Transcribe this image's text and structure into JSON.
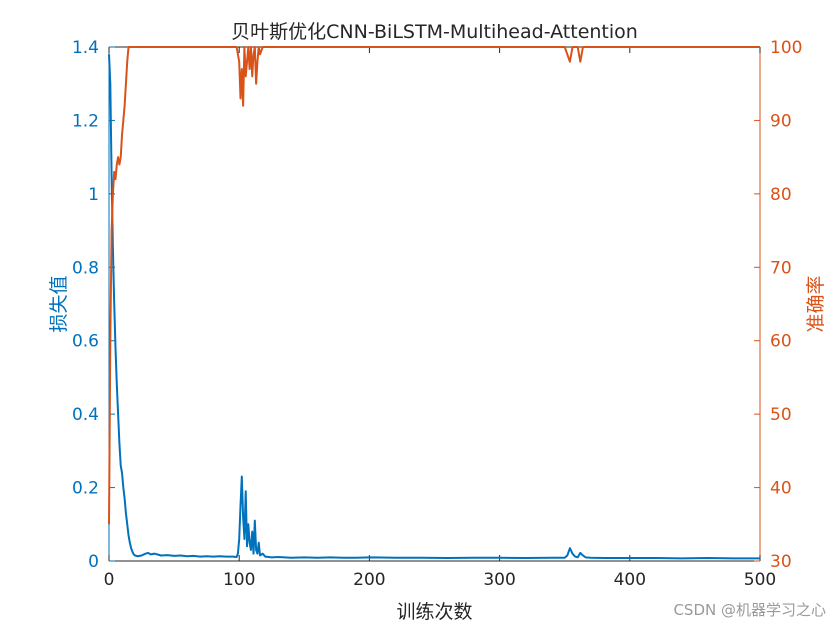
{
  "chart_data": {
    "type": "line",
    "title": "贝叶斯优化CNN-BiLSTM-Multihead-Attention",
    "xlabel": "训练次数",
    "ylabel_left": "损失值",
    "ylabel_right": "准确率",
    "xlim": [
      0,
      500
    ],
    "ylim_left": [
      0,
      1.4
    ],
    "ylim_right": [
      30,
      100
    ],
    "x_ticks": [
      "0",
      "100",
      "200",
      "300",
      "400",
      "500"
    ],
    "y_ticks_left": [
      "0",
      "0.2",
      "0.4",
      "0.6",
      "0.8",
      "1",
      "1.2",
      "1.4"
    ],
    "y_ticks_right": [
      "30",
      "40",
      "50",
      "60",
      "70",
      "80",
      "90",
      "100"
    ],
    "colors": {
      "loss": "#0072BD",
      "accuracy": "#D95319"
    },
    "grid": false,
    "series": [
      {
        "axis": "left",
        "points": [
          [
            0,
            1.38
          ],
          [
            1,
            1.3
          ],
          [
            2,
            1.05
          ],
          [
            3,
            0.85
          ],
          [
            4,
            0.7
          ],
          [
            5,
            0.58
          ],
          [
            6,
            0.48
          ],
          [
            7,
            0.4
          ],
          [
            8,
            0.32
          ],
          [
            9,
            0.26
          ],
          [
            10,
            0.24
          ],
          [
            11,
            0.2
          ],
          [
            12,
            0.17
          ],
          [
            13,
            0.13
          ],
          [
            14,
            0.1
          ],
          [
            15,
            0.07
          ],
          [
            16,
            0.05
          ],
          [
            17,
            0.035
          ],
          [
            18,
            0.025
          ],
          [
            19,
            0.018
          ],
          [
            20,
            0.015
          ],
          [
            22,
            0.013
          ],
          [
            25,
            0.015
          ],
          [
            28,
            0.02
          ],
          [
            30,
            0.022
          ],
          [
            32,
            0.018
          ],
          [
            35,
            0.02
          ],
          [
            38,
            0.017
          ],
          [
            40,
            0.015
          ],
          [
            45,
            0.016
          ],
          [
            50,
            0.014
          ],
          [
            55,
            0.015
          ],
          [
            60,
            0.013
          ],
          [
            65,
            0.014
          ],
          [
            70,
            0.012
          ],
          [
            75,
            0.013
          ],
          [
            80,
            0.012
          ],
          [
            85,
            0.013
          ],
          [
            90,
            0.012
          ],
          [
            95,
            0.012
          ],
          [
            98,
            0.011
          ],
          [
            99,
            0.02
          ],
          [
            100,
            0.06
          ],
          [
            101,
            0.15
          ],
          [
            102,
            0.23
          ],
          [
            103,
            0.12
          ],
          [
            104,
            0.06
          ],
          [
            105,
            0.19
          ],
          [
            106,
            0.04
          ],
          [
            107,
            0.1
          ],
          [
            108,
            0.05
          ],
          [
            109,
            0.03
          ],
          [
            110,
            0.08
          ],
          [
            111,
            0.02
          ],
          [
            112,
            0.11
          ],
          [
            113,
            0.03
          ],
          [
            114,
            0.02
          ],
          [
            115,
            0.05
          ],
          [
            116,
            0.015
          ],
          [
            118,
            0.02
          ],
          [
            120,
            0.012
          ],
          [
            125,
            0.01
          ],
          [
            130,
            0.011
          ],
          [
            140,
            0.009
          ],
          [
            150,
            0.01
          ],
          [
            160,
            0.009
          ],
          [
            170,
            0.01
          ],
          [
            180,
            0.009
          ],
          [
            190,
            0.009
          ],
          [
            200,
            0.01
          ],
          [
            220,
            0.009
          ],
          [
            240,
            0.009
          ],
          [
            260,
            0.008
          ],
          [
            280,
            0.009
          ],
          [
            300,
            0.009
          ],
          [
            320,
            0.008
          ],
          [
            340,
            0.009
          ],
          [
            350,
            0.009
          ],
          [
            352,
            0.015
          ],
          [
            354,
            0.035
          ],
          [
            356,
            0.02
          ],
          [
            358,
            0.012
          ],
          [
            360,
            0.01
          ],
          [
            362,
            0.022
          ],
          [
            364,
            0.015
          ],
          [
            366,
            0.01
          ],
          [
            370,
            0.009
          ],
          [
            380,
            0.008
          ],
          [
            400,
            0.008
          ],
          [
            420,
            0.008
          ],
          [
            440,
            0.007
          ],
          [
            460,
            0.008
          ],
          [
            480,
            0.007
          ],
          [
            500,
            0.007
          ]
        ]
      },
      {
        "axis": "right",
        "points": [
          [
            0,
            35
          ],
          [
            1,
            60
          ],
          [
            2,
            75
          ],
          [
            3,
            80
          ],
          [
            4,
            83
          ],
          [
            5,
            82
          ],
          [
            6,
            84
          ],
          [
            7,
            85
          ],
          [
            8,
            84
          ],
          [
            9,
            85
          ],
          [
            10,
            88
          ],
          [
            11,
            90
          ],
          [
            12,
            92
          ],
          [
            13,
            95
          ],
          [
            14,
            98
          ],
          [
            15,
            100
          ],
          [
            20,
            100
          ],
          [
            40,
            100
          ],
          [
            60,
            100
          ],
          [
            80,
            100
          ],
          [
            98,
            100
          ],
          [
            100,
            98
          ],
          [
            101,
            93
          ],
          [
            102,
            97
          ],
          [
            103,
            92
          ],
          [
            104,
            100
          ],
          [
            105,
            96
          ],
          [
            106,
            98
          ],
          [
            107,
            100
          ],
          [
            108,
            97
          ],
          [
            109,
            100
          ],
          [
            110,
            96
          ],
          [
            111,
            99
          ],
          [
            112,
            100
          ],
          [
            113,
            95
          ],
          [
            114,
            98
          ],
          [
            115,
            100
          ],
          [
            116,
            99
          ],
          [
            118,
            100
          ],
          [
            140,
            100
          ],
          [
            200,
            100
          ],
          [
            300,
            100
          ],
          [
            350,
            100
          ],
          [
            352,
            99
          ],
          [
            354,
            98
          ],
          [
            356,
            100
          ],
          [
            360,
            100
          ],
          [
            362,
            98
          ],
          [
            364,
            100
          ],
          [
            400,
            100
          ],
          [
            500,
            100
          ]
        ]
      }
    ]
  },
  "watermark": "CSDN @机器学习之心"
}
